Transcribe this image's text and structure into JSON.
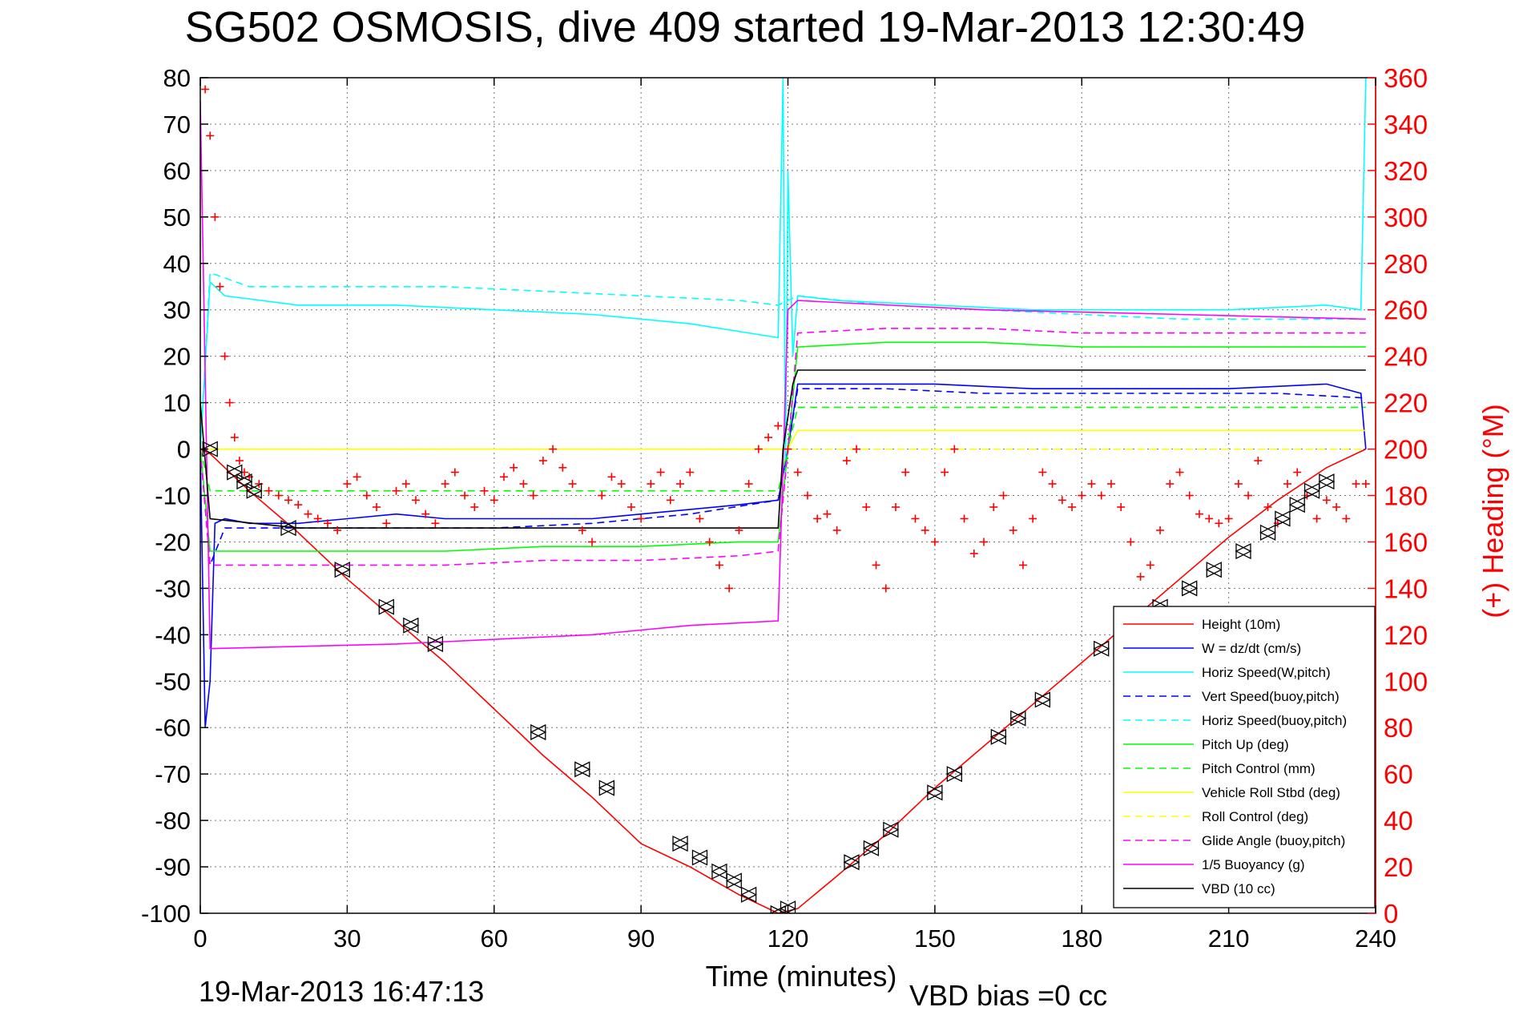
{
  "chart_data": {
    "type": "line",
    "title": "SG502 OSMOSIS, dive 409 started 19-Mar-2013 12:30:49",
    "xlabel": "Time (minutes)",
    "ylabel_right": "(+) Heading (°M)",
    "xlim": [
      0,
      240
    ],
    "ylim": [
      -100,
      80
    ],
    "ylim_right": [
      0,
      360
    ],
    "x_ticks": [
      "0",
      "30",
      "60",
      "90",
      "120",
      "150",
      "180",
      "210",
      "240"
    ],
    "y_ticks": [
      "80",
      "70",
      "60",
      "50",
      "40",
      "30",
      "20",
      "10",
      "0",
      "-10",
      "-20",
      "-30",
      "-40",
      "-50",
      "-60",
      "-70",
      "-80",
      "-90",
      "-100"
    ],
    "y_ticks_right": [
      "360",
      "340",
      "320",
      "300",
      "280",
      "260",
      "240",
      "220",
      "200",
      "180",
      "160",
      "140",
      "120",
      "100",
      "80",
      "60",
      "40",
      "20",
      "0"
    ],
    "grid": true,
    "legend_position": "bottom-right",
    "footer_left": "19-Mar-2013 16:47:13",
    "footer_right": "VBD bias =0 cc",
    "colors": {
      "red": "#ff0000",
      "blue": "#0000ff",
      "cyan": "#00ffff",
      "green": "#00ff00",
      "yellow": "#ffff00",
      "magenta": "#ff00ff",
      "black": "#000000"
    },
    "series": [
      {
        "name": "Height (10m)",
        "color": "#ff0000",
        "dash": false,
        "x": [
          0,
          2,
          10,
          20,
          30,
          40,
          50,
          60,
          70,
          80,
          90,
          100,
          110,
          118,
          122,
          130,
          140,
          150,
          160,
          170,
          180,
          190,
          200,
          210,
          220,
          230,
          238
        ],
        "y": [
          0,
          -1,
          -9,
          -18,
          -28,
          -37,
          -46,
          -56,
          -66,
          -75,
          -85,
          -90,
          -96,
          -100,
          -99,
          -92,
          -83,
          -73,
          -64,
          -55,
          -46,
          -37,
          -28,
          -19,
          -11,
          -4,
          0
        ]
      },
      {
        "name": "W = dz/dt (cm/s)",
        "color": "#0000ff",
        "dash": false,
        "x": [
          0,
          1,
          2,
          3,
          5,
          10,
          20,
          30,
          40,
          50,
          60,
          70,
          80,
          90,
          100,
          110,
          118,
          120,
          122,
          130,
          150,
          170,
          190,
          210,
          230,
          237,
          238
        ],
        "y": [
          0,
          -60,
          -50,
          -16,
          -15,
          -16,
          -16,
          -15,
          -14,
          -15,
          -15,
          -15,
          -15,
          -14,
          -13,
          -12,
          -11,
          0,
          14,
          14,
          14,
          13,
          13,
          13,
          14,
          12,
          0
        ]
      },
      {
        "name": "Horiz Speed(W,pitch)",
        "color": "#00ffff",
        "dash": false,
        "x": [
          0,
          2,
          5,
          20,
          40,
          60,
          80,
          100,
          118,
          119,
          119.5,
          120,
          121,
          122,
          130,
          150,
          170,
          190,
          210,
          230,
          237,
          238
        ],
        "y": [
          0,
          36,
          33,
          31,
          31,
          30,
          29,
          27,
          24,
          80,
          -5,
          60,
          20,
          33,
          32,
          31,
          30,
          30,
          30,
          31,
          30,
          80
        ]
      },
      {
        "name": "Vert Speed(buoy,pitch)",
        "color": "#0000ff",
        "dash": true,
        "x": [
          0,
          2,
          5,
          20,
          40,
          60,
          80,
          100,
          118,
          120,
          122,
          140,
          160,
          180,
          200,
          220,
          238
        ],
        "y": [
          0,
          -25,
          -17,
          -17,
          -17,
          -17,
          -16,
          -14,
          -11,
          0,
          13,
          13,
          12,
          12,
          12,
          12,
          11
        ]
      },
      {
        "name": "Horiz Speed(buoy,pitch)",
        "color": "#00ffff",
        "dash": true,
        "x": [
          0,
          2,
          10,
          30,
          50,
          70,
          90,
          110,
          118,
          122,
          140,
          160,
          180,
          200,
          220,
          238
        ],
        "y": [
          0,
          38,
          35,
          35,
          35,
          34,
          33,
          32,
          31,
          33,
          31,
          30,
          29,
          28,
          28,
          28
        ]
      },
      {
        "name": "Pitch Up (deg)",
        "color": "#00ff00",
        "dash": false,
        "x": [
          0,
          2,
          10,
          30,
          50,
          70,
          90,
          110,
          118,
          120,
          122,
          140,
          160,
          180,
          200,
          220,
          238
        ],
        "y": [
          0,
          -22,
          -22,
          -22,
          -22,
          -21,
          -21,
          -20,
          -20,
          0,
          22,
          23,
          23,
          22,
          22,
          22,
          22
        ]
      },
      {
        "name": "Pitch Control (mm)",
        "color": "#00ff00",
        "dash": true,
        "x": [
          0,
          2,
          118,
          120,
          122,
          238
        ],
        "y": [
          0,
          -9,
          -9,
          0,
          9,
          9
        ]
      },
      {
        "name": "Vehicle Roll Stbd (deg)",
        "color": "#ffff00",
        "dash": false,
        "x": [
          0,
          2,
          10,
          30,
          60,
          90,
          118,
          120,
          122,
          140,
          160,
          180,
          200,
          220,
          238
        ],
        "y": [
          0,
          0,
          0,
          0,
          0,
          0,
          0,
          0,
          4,
          4,
          4,
          4,
          4,
          4,
          4
        ]
      },
      {
        "name": "Roll Control (deg)",
        "color": "#ffff00",
        "dash": true,
        "x": [
          0,
          2,
          118,
          120,
          122,
          238
        ],
        "y": [
          0,
          0,
          0,
          0,
          0,
          0
        ]
      },
      {
        "name": "Glide Angle (buoy,pitch)",
        "color": "#ff00ff",
        "dash": true,
        "x": [
          0,
          2,
          10,
          30,
          50,
          70,
          90,
          110,
          118,
          120,
          122,
          140,
          160,
          180,
          200,
          220,
          238
        ],
        "y": [
          0,
          -25,
          -25,
          -25,
          -25,
          -24,
          -24,
          -23,
          -22,
          0,
          25,
          26,
          26,
          25,
          25,
          25,
          25
        ]
      },
      {
        "name": "1/5 Buoyancy (g)",
        "color": "#ff00ff",
        "dash": false,
        "x": [
          0,
          2,
          40,
          80,
          100,
          118,
          120,
          122,
          160,
          200,
          238
        ],
        "y": [
          75,
          -43,
          -42,
          -40,
          -38,
          -37,
          30,
          32,
          30,
          29,
          28
        ]
      },
      {
        "name": "VBD (10 cc)",
        "color": "#000000",
        "dash": false,
        "x": [
          0,
          2,
          20,
          60,
          100,
          118,
          119,
          121,
          122,
          160,
          200,
          238
        ],
        "y": [
          10,
          -15,
          -17,
          -17,
          -17,
          -17,
          0,
          14,
          17,
          17,
          17,
          17
        ]
      }
    ],
    "heading": {
      "axis": "right",
      "color": "#ff0000",
      "marker": "+",
      "x": [
        1,
        2,
        3,
        4,
        5,
        6,
        7,
        8,
        9,
        10,
        12,
        14,
        16,
        18,
        20,
        22,
        24,
        26,
        28,
        30,
        32,
        34,
        36,
        38,
        40,
        42,
        44,
        46,
        48,
        50,
        52,
        54,
        56,
        58,
        60,
        62,
        64,
        66,
        68,
        70,
        72,
        74,
        76,
        78,
        80,
        82,
        84,
        86,
        88,
        90,
        92,
        94,
        96,
        98,
        100,
        102,
        104,
        106,
        108,
        110,
        112,
        114,
        116,
        118,
        120,
        122,
        124,
        126,
        128,
        130,
        132,
        134,
        136,
        138,
        140,
        142,
        144,
        146,
        148,
        150,
        152,
        154,
        156,
        158,
        160,
        162,
        164,
        166,
        168,
        170,
        172,
        174,
        176,
        178,
        180,
        182,
        184,
        186,
        188,
        190,
        192,
        194,
        196,
        198,
        200,
        202,
        204,
        206,
        208,
        210,
        212,
        214,
        216,
        218,
        220,
        222,
        224,
        226,
        228,
        230,
        232,
        234,
        236,
        238
      ],
      "y": [
        355,
        335,
        300,
        270,
        240,
        220,
        205,
        195,
        190,
        188,
        185,
        182,
        180,
        178,
        176,
        172,
        170,
        168,
        165,
        185,
        188,
        180,
        175,
        168,
        182,
        185,
        178,
        172,
        168,
        185,
        190,
        180,
        175,
        182,
        178,
        188,
        192,
        185,
        180,
        195,
        200,
        192,
        185,
        165,
        160,
        180,
        188,
        185,
        175,
        170,
        185,
        190,
        178,
        185,
        190,
        170,
        160,
        150,
        140,
        165,
        185,
        200,
        205,
        210,
        200,
        190,
        180,
        170,
        172,
        165,
        195,
        200,
        175,
        150,
        140,
        175,
        190,
        170,
        165,
        160,
        190,
        200,
        170,
        155,
        160,
        175,
        180,
        165,
        150,
        170,
        190,
        185,
        178,
        175,
        180,
        185,
        180,
        185,
        175,
        160,
        145,
        150,
        165,
        185,
        190,
        180,
        172,
        170,
        168,
        170,
        185,
        180,
        195,
        175,
        168,
        185,
        190,
        180,
        170,
        178,
        175,
        170,
        185,
        185
      ]
    },
    "markers": {
      "symbols": "triangle",
      "x": [
        2,
        7,
        9,
        11,
        18,
        29,
        38,
        43,
        48,
        69,
        78,
        83,
        98,
        102,
        106,
        109,
        112,
        118,
        120,
        133,
        137,
        141,
        150,
        154,
        163,
        167,
        172,
        184,
        196,
        202,
        207,
        213,
        218,
        221,
        224,
        227,
        230
      ],
      "y": [
        0,
        -5,
        -7,
        -9,
        -17,
        -26,
        -34,
        -38,
        -42,
        -61,
        -69,
        -73,
        -85,
        -88,
        -91,
        -93,
        -96,
        -100,
        -99,
        -89,
        -86,
        -82,
        -74,
        -70,
        -62,
        -58,
        -54,
        -43,
        -34,
        -30,
        -26,
        -22,
        -18,
        -15,
        -12,
        -9,
        -7
      ]
    }
  }
}
